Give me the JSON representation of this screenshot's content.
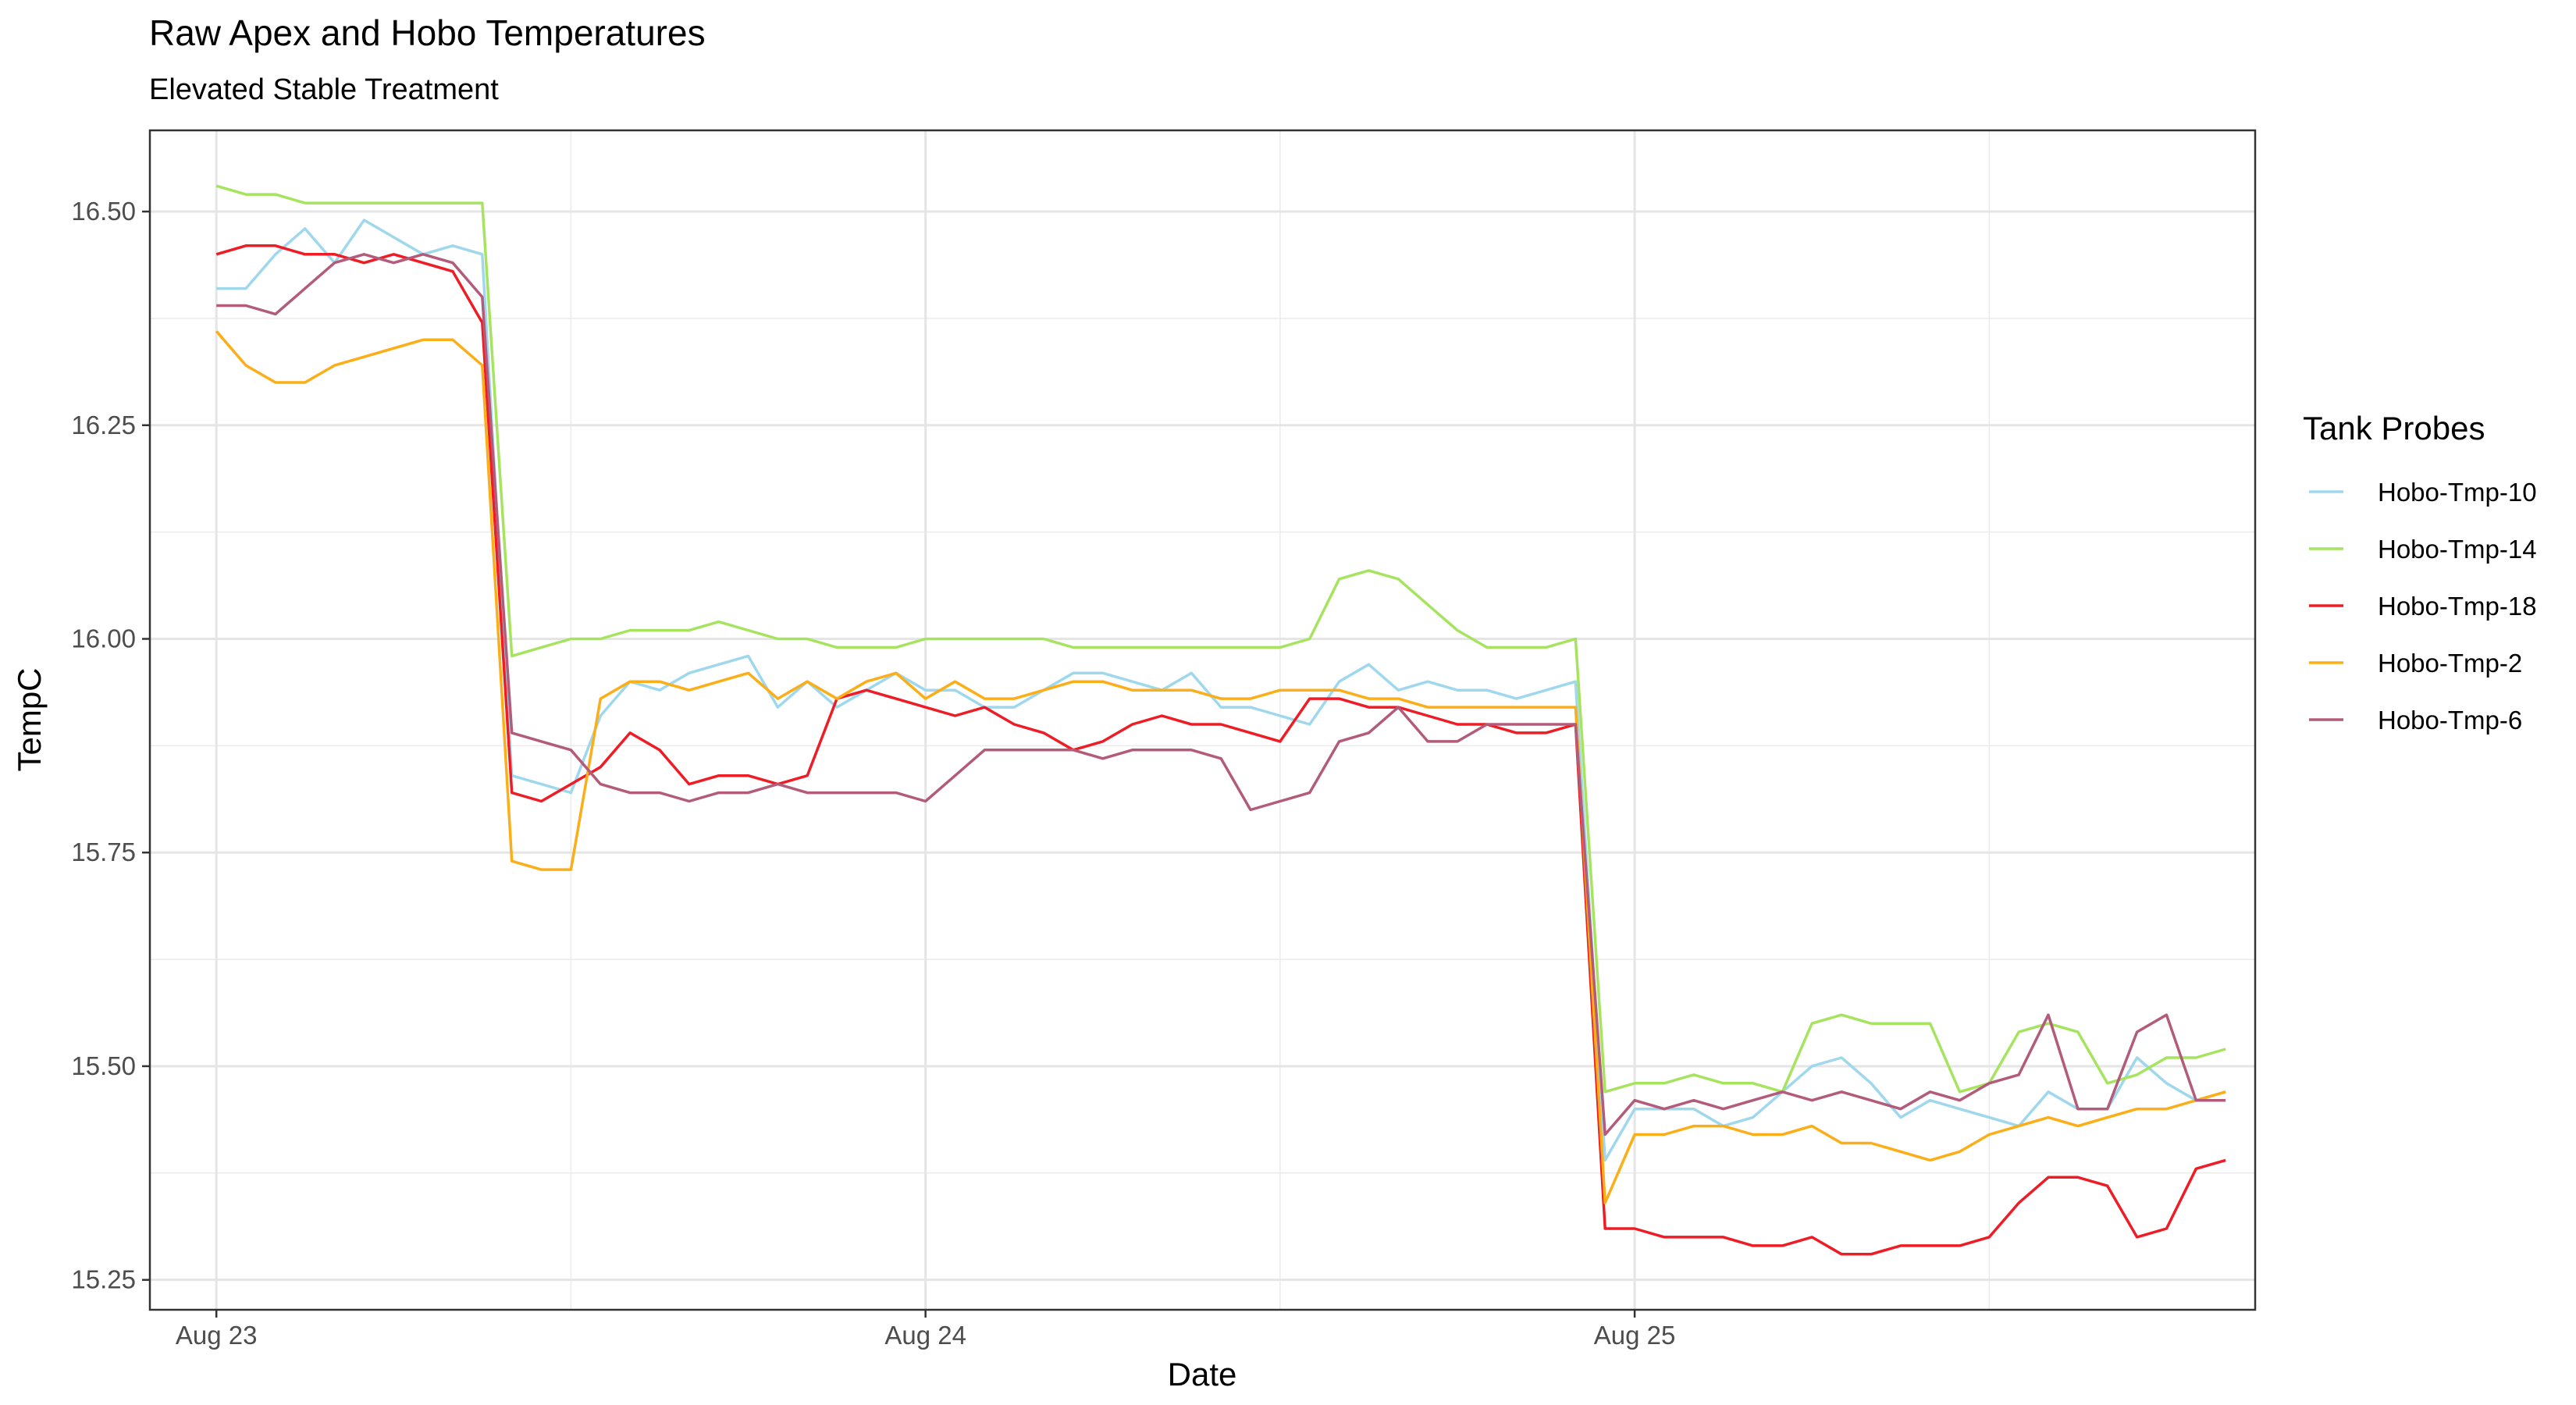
{
  "chart_data": {
    "type": "line",
    "title": "Raw Apex and Hobo Temperatures",
    "subtitle": "Elevated Stable Treatment",
    "xlabel": "Date",
    "ylabel": "TempC",
    "x_axis": {
      "type": "date",
      "range": [
        "2021-08-22T21:45",
        "2021-08-25T21:00"
      ],
      "ticks": [
        {
          "value": "2021-08-23T00:00",
          "label": "Aug 23"
        },
        {
          "value": "2021-08-24T00:00",
          "label": "Aug 24"
        },
        {
          "value": "2021-08-25T00:00",
          "label": "Aug 25"
        }
      ]
    },
    "y_axis": {
      "range": [
        15.215,
        16.595
      ],
      "ticks": [
        {
          "value": 15.25,
          "label": "15.25"
        },
        {
          "value": 15.5,
          "label": "15.50"
        },
        {
          "value": 15.75,
          "label": "15.75"
        },
        {
          "value": 16.0,
          "label": "16.00"
        },
        {
          "value": 16.25,
          "label": "16.25"
        },
        {
          "value": 16.5,
          "label": "16.50"
        }
      ]
    },
    "grid": true,
    "legend": {
      "title": "Tank Probes",
      "position": "right"
    },
    "x": [
      "2021-08-23T00:00",
      "2021-08-23T01:00",
      "2021-08-23T02:00",
      "2021-08-23T03:00",
      "2021-08-23T04:00",
      "2021-08-23T05:00",
      "2021-08-23T06:00",
      "2021-08-23T07:00",
      "2021-08-23T08:00",
      "2021-08-23T09:00",
      "2021-08-23T10:00",
      "2021-08-23T11:00",
      "2021-08-23T12:00",
      "2021-08-23T13:00",
      "2021-08-23T14:00",
      "2021-08-23T15:00",
      "2021-08-23T16:00",
      "2021-08-23T17:00",
      "2021-08-23T18:00",
      "2021-08-23T19:00",
      "2021-08-23T20:00",
      "2021-08-23T21:00",
      "2021-08-23T22:00",
      "2021-08-23T23:00",
      "2021-08-24T00:00",
      "2021-08-24T01:00",
      "2021-08-24T02:00",
      "2021-08-24T03:00",
      "2021-08-24T04:00",
      "2021-08-24T05:00",
      "2021-08-24T06:00",
      "2021-08-24T07:00",
      "2021-08-24T08:00",
      "2021-08-24T09:00",
      "2021-08-24T10:00",
      "2021-08-24T11:00",
      "2021-08-24T12:00",
      "2021-08-24T13:00",
      "2021-08-24T14:00",
      "2021-08-24T15:00",
      "2021-08-24T16:00",
      "2021-08-24T17:00",
      "2021-08-24T18:00",
      "2021-08-24T19:00",
      "2021-08-24T20:00",
      "2021-08-24T21:00",
      "2021-08-24T22:00",
      "2021-08-24T23:00",
      "2021-08-25T00:00",
      "2021-08-25T01:00",
      "2021-08-25T02:00",
      "2021-08-25T03:00",
      "2021-08-25T04:00",
      "2021-08-25T05:00",
      "2021-08-25T06:00",
      "2021-08-25T07:00",
      "2021-08-25T08:00",
      "2021-08-25T09:00",
      "2021-08-25T10:00",
      "2021-08-25T11:00",
      "2021-08-25T12:00",
      "2021-08-25T13:00",
      "2021-08-25T14:00",
      "2021-08-25T15:00",
      "2021-08-25T16:00",
      "2021-08-25T17:00",
      "2021-08-25T18:00",
      "2021-08-25T19:00",
      "2021-08-25T20:00"
    ],
    "series": [
      {
        "name": "Hobo-Tmp-10",
        "color": "#9fd8ec",
        "values": [
          16.41,
          16.41,
          16.45,
          16.48,
          16.44,
          16.49,
          16.47,
          16.45,
          16.46,
          16.45,
          15.84,
          15.83,
          15.82,
          15.91,
          15.95,
          15.94,
          15.96,
          15.97,
          15.98,
          15.92,
          15.95,
          15.92,
          15.94,
          15.96,
          15.94,
          15.94,
          15.92,
          15.92,
          15.94,
          15.96,
          15.96,
          15.95,
          15.94,
          15.96,
          15.92,
          15.92,
          15.91,
          15.9,
          15.95,
          15.97,
          15.94,
          15.95,
          15.94,
          15.94,
          15.93,
          15.94,
          15.95,
          15.39,
          15.45,
          15.45,
          15.45,
          15.43,
          15.44,
          15.47,
          15.5,
          15.51,
          15.48,
          15.44,
          15.46,
          15.45,
          15.44,
          15.43,
          15.47,
          15.45,
          15.45,
          15.51,
          15.48,
          15.46,
          15.47
        ]
      },
      {
        "name": "Hobo-Tmp-14",
        "color": "#a6e35f",
        "values": [
          16.53,
          16.52,
          16.52,
          16.51,
          16.51,
          16.51,
          16.51,
          16.51,
          16.51,
          16.51,
          15.98,
          15.99,
          16.0,
          16.0,
          16.01,
          16.01,
          16.01,
          16.02,
          16.01,
          16.0,
          16.0,
          15.99,
          15.99,
          15.99,
          16.0,
          16.0,
          16.0,
          16.0,
          16.0,
          15.99,
          15.99,
          15.99,
          15.99,
          15.99,
          15.99,
          15.99,
          15.99,
          16.0,
          16.07,
          16.08,
          16.07,
          16.04,
          16.01,
          15.99,
          15.99,
          15.99,
          16.0,
          15.47,
          15.48,
          15.48,
          15.49,
          15.48,
          15.48,
          15.47,
          15.55,
          15.56,
          15.55,
          15.55,
          15.55,
          15.47,
          15.48,
          15.54,
          15.55,
          15.54,
          15.48,
          15.49,
          15.51,
          15.51,
          15.52
        ]
      },
      {
        "name": "Hobo-Tmp-18",
        "color": "#ee1c25",
        "values": [
          16.45,
          16.46,
          16.46,
          16.45,
          16.45,
          16.44,
          16.45,
          16.44,
          16.43,
          16.37,
          15.82,
          15.81,
          15.83,
          15.85,
          15.89,
          15.87,
          15.83,
          15.84,
          15.84,
          15.83,
          15.84,
          15.93,
          15.94,
          15.93,
          15.92,
          15.91,
          15.92,
          15.9,
          15.89,
          15.87,
          15.88,
          15.9,
          15.91,
          15.9,
          15.9,
          15.89,
          15.88,
          15.93,
          15.93,
          15.92,
          15.92,
          15.91,
          15.9,
          15.9,
          15.89,
          15.89,
          15.9,
          15.31,
          15.31,
          15.3,
          15.3,
          15.3,
          15.29,
          15.29,
          15.3,
          15.28,
          15.28,
          15.29,
          15.29,
          15.29,
          15.3,
          15.34,
          15.37,
          15.37,
          15.36,
          15.3,
          15.31,
          15.38,
          15.39
        ]
      },
      {
        "name": "Hobo-Tmp-2",
        "color": "#fbae17",
        "values": [
          16.36,
          16.32,
          16.3,
          16.3,
          16.32,
          16.33,
          16.34,
          16.35,
          16.35,
          16.32,
          15.74,
          15.73,
          15.73,
          15.93,
          15.95,
          15.95,
          15.94,
          15.95,
          15.96,
          15.93,
          15.95,
          15.93,
          15.95,
          15.96,
          15.93,
          15.95,
          15.93,
          15.93,
          15.94,
          15.95,
          15.95,
          15.94,
          15.94,
          15.94,
          15.93,
          15.93,
          15.94,
          15.94,
          15.94,
          15.93,
          15.93,
          15.92,
          15.92,
          15.92,
          15.92,
          15.92,
          15.92,
          15.34,
          15.42,
          15.42,
          15.43,
          15.43,
          15.42,
          15.42,
          15.43,
          15.41,
          15.41,
          15.4,
          15.39,
          15.4,
          15.42,
          15.43,
          15.44,
          15.43,
          15.44,
          15.45,
          15.45,
          15.46,
          15.47
        ]
      },
      {
        "name": "Hobo-Tmp-6",
        "color": "#b25b7a",
        "values": [
          16.39,
          16.39,
          16.38,
          16.41,
          16.44,
          16.45,
          16.44,
          16.45,
          16.44,
          16.4,
          15.89,
          15.88,
          15.87,
          15.83,
          15.82,
          15.82,
          15.81,
          15.82,
          15.82,
          15.83,
          15.82,
          15.82,
          15.82,
          15.82,
          15.81,
          15.84,
          15.87,
          15.87,
          15.87,
          15.87,
          15.86,
          15.87,
          15.87,
          15.87,
          15.86,
          15.8,
          15.81,
          15.82,
          15.88,
          15.89,
          15.92,
          15.88,
          15.88,
          15.9,
          15.9,
          15.9,
          15.9,
          15.42,
          15.46,
          15.45,
          15.46,
          15.45,
          15.46,
          15.47,
          15.46,
          15.47,
          15.46,
          15.45,
          15.47,
          15.46,
          15.48,
          15.49,
          15.56,
          15.45,
          15.45,
          15.54,
          15.56,
          15.46,
          15.46
        ]
      }
    ]
  }
}
